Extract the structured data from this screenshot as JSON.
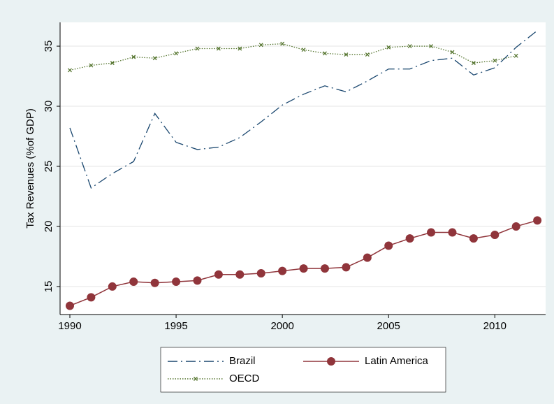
{
  "chart_data": {
    "type": "line",
    "ylabel": "Tax Revenues (%of GDP)",
    "x": [
      1990,
      1991,
      1992,
      1993,
      1994,
      1995,
      1996,
      1997,
      1998,
      1999,
      2000,
      2001,
      2002,
      2003,
      2004,
      2005,
      2006,
      2007,
      2008,
      2009,
      2010,
      2011,
      2012
    ],
    "xlim": [
      1989.54,
      2012.39
    ],
    "xticks": [
      1990,
      1995,
      2000,
      2005,
      2010
    ],
    "ylim": [
      12.67,
      36.98
    ],
    "yticks": [
      15,
      20,
      25,
      30,
      35
    ],
    "grid": true,
    "series": [
      {
        "name": "Brazil",
        "color": "#1a476f",
        "style": "dashdot",
        "marker": "none",
        "values": [
          28.2,
          23.2,
          24.4,
          25.4,
          29.4,
          27.0,
          26.4,
          26.6,
          27.4,
          28.7,
          30.1,
          31.0,
          31.7,
          31.2,
          32.1,
          33.1,
          33.1,
          33.8,
          34.0,
          32.6,
          33.2,
          34.9,
          36.3
        ]
      },
      {
        "name": "Latin America",
        "color": "#90353b",
        "style": "solid",
        "marker": "circle",
        "values": [
          13.4,
          14.1,
          15.0,
          15.4,
          15.3,
          15.4,
          15.5,
          16.0,
          16.0,
          16.1,
          16.3,
          16.5,
          16.5,
          16.6,
          17.4,
          18.4,
          19.0,
          19.5,
          19.5,
          19.0,
          19.3,
          20.0,
          20.5
        ]
      },
      {
        "name": "OECD",
        "color": "#55752f",
        "style": "dotted",
        "marker": "x",
        "values": [
          33.0,
          33.4,
          33.6,
          34.1,
          34.0,
          34.4,
          34.8,
          34.8,
          34.8,
          35.1,
          35.2,
          34.7,
          34.4,
          34.3,
          34.3,
          34.9,
          35.0,
          35.0,
          34.5,
          33.6,
          33.8,
          34.2,
          null
        ]
      }
    ]
  }
}
